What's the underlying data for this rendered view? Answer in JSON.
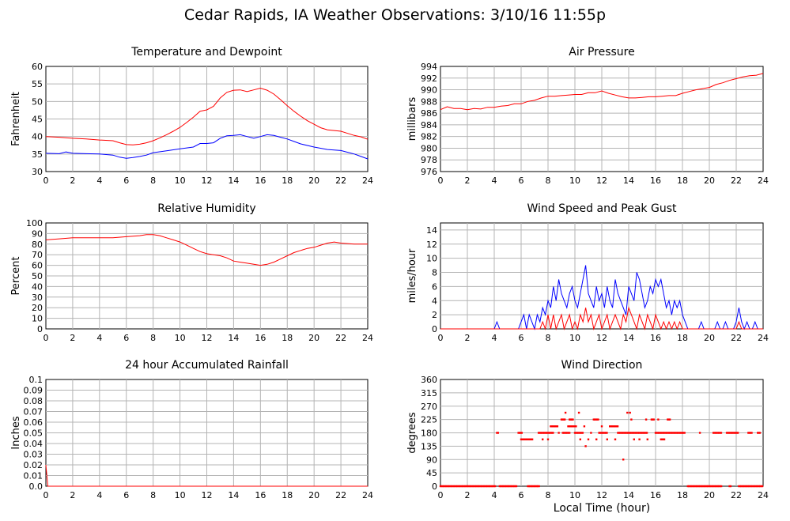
{
  "page": {
    "title": "Cedar Rapids, IA Weather Observations: 3/10/16 11:55p",
    "xlabel": "Local Time (hour)"
  },
  "chart_data": [
    {
      "id": "temp",
      "type": "line",
      "title": "Temperature and Dewpoint",
      "ylabel": "Fahrenheit",
      "xlim": [
        0,
        24
      ],
      "ylim": [
        30,
        60
      ],
      "xticks": [
        0,
        2,
        4,
        6,
        8,
        10,
        12,
        14,
        16,
        18,
        20,
        22,
        24
      ],
      "yticks": [
        30,
        35,
        40,
        45,
        50,
        55,
        60
      ],
      "grid": true,
      "series": [
        {
          "color": "#ff0000",
          "x": [
            0,
            1,
            2,
            3,
            4,
            5,
            5.5,
            6,
            6.5,
            7,
            7.5,
            8,
            8.5,
            9,
            9.5,
            10,
            10.5,
            11,
            11.5,
            12,
            12.5,
            13,
            13.5,
            14,
            14.5,
            15,
            15.5,
            16,
            16.5,
            17,
            17.5,
            18,
            18.5,
            19,
            19.5,
            20,
            20.5,
            21,
            21.5,
            22,
            22.5,
            23,
            23.5,
            24
          ],
          "y": [
            40,
            39.8,
            39.5,
            39.3,
            39,
            38.8,
            38.2,
            37.7,
            37.6,
            37.8,
            38.2,
            38.8,
            39.6,
            40.5,
            41.5,
            42.6,
            44,
            45.5,
            47.2,
            47.6,
            48.6,
            51,
            52.6,
            53.2,
            53.3,
            52.8,
            53.3,
            53.8,
            53.2,
            52.1,
            50.5,
            48.8,
            47.2,
            45.8,
            44.5,
            43.5,
            42.5,
            41.9,
            41.7,
            41.5,
            40.9,
            40.3,
            39.9,
            39.2
          ]
        },
        {
          "color": "#0000ff",
          "x": [
            0,
            1,
            1.5,
            2,
            3,
            4,
            5,
            5.5,
            6,
            6.5,
            7,
            7.5,
            8,
            9,
            10,
            11,
            11.5,
            12,
            12.5,
            13,
            13.5,
            14,
            14.5,
            15,
            15.5,
            16,
            16.5,
            17,
            17.5,
            18,
            18.5,
            19,
            20,
            21,
            22,
            22.5,
            23,
            23.5,
            24
          ],
          "y": [
            35.2,
            35.1,
            35.6,
            35.2,
            35.1,
            35,
            34.7,
            34.1,
            33.8,
            34,
            34.3,
            34.7,
            35.4,
            35.9,
            36.5,
            37,
            38,
            38,
            38.2,
            39.5,
            40.2,
            40.3,
            40.5,
            40,
            39.5,
            40,
            40.5,
            40.3,
            39.8,
            39.3,
            38.6,
            37.9,
            37,
            36.3,
            36,
            35.5,
            35,
            34.3,
            33.6
          ]
        }
      ]
    },
    {
      "id": "pressure",
      "type": "line",
      "title": "Air Pressure",
      "ylabel": "millibars",
      "xlim": [
        0,
        24
      ],
      "ylim": [
        976,
        994
      ],
      "xticks": [
        0,
        2,
        4,
        6,
        8,
        10,
        12,
        14,
        16,
        18,
        20,
        22,
        24
      ],
      "yticks": [
        976,
        978,
        980,
        982,
        984,
        986,
        988,
        990,
        992,
        994
      ],
      "grid": true,
      "series": [
        {
          "color": "#ff0000",
          "x": [
            0,
            0.5,
            1,
            1.5,
            2,
            2.5,
            3,
            3.5,
            4,
            4.5,
            5,
            5.5,
            6,
            6.5,
            7,
            7.5,
            8,
            8.5,
            9,
            9.5,
            10,
            10.5,
            11,
            11.5,
            12,
            12.5,
            13,
            13.5,
            14,
            14.5,
            15,
            15.5,
            16,
            16.5,
            17,
            17.5,
            18,
            18.5,
            19,
            19.5,
            20,
            20.5,
            21,
            21.5,
            22,
            22.5,
            23,
            23.5,
            24
          ],
          "y": [
            986.6,
            987.1,
            986.8,
            986.8,
            986.6,
            986.8,
            986.7,
            987,
            987,
            987.2,
            987.3,
            987.6,
            987.6,
            988,
            988.2,
            988.6,
            988.9,
            988.9,
            989,
            989.1,
            989.2,
            989.2,
            989.5,
            989.5,
            989.8,
            989.4,
            989.1,
            988.8,
            988.6,
            988.6,
            988.7,
            988.8,
            988.8,
            988.9,
            989,
            989,
            989.4,
            989.7,
            990,
            990.2,
            990.4,
            990.9,
            991.2,
            991.6,
            991.9,
            992.2,
            992.4,
            992.5,
            992.8
          ]
        }
      ]
    },
    {
      "id": "humidity",
      "type": "line",
      "title": "Relative Humidity",
      "ylabel": "Percent",
      "xlim": [
        0,
        24
      ],
      "ylim": [
        0,
        100
      ],
      "xticks": [
        0,
        2,
        4,
        6,
        8,
        10,
        12,
        14,
        16,
        18,
        20,
        22,
        24
      ],
      "yticks": [
        0,
        10,
        20,
        30,
        40,
        50,
        60,
        70,
        80,
        90,
        100
      ],
      "grid": true,
      "series": [
        {
          "color": "#ff0000",
          "x": [
            0,
            1,
            2,
            3,
            4,
            5,
            6,
            7,
            7.5,
            8,
            8.5,
            9,
            9.5,
            10,
            10.5,
            11,
            11.5,
            12,
            12.5,
            13,
            13.5,
            14,
            14.5,
            15,
            15.5,
            16,
            16.5,
            17,
            17.5,
            18,
            18.5,
            19,
            19.5,
            20,
            20.5,
            21,
            21.5,
            22,
            23,
            24
          ],
          "y": [
            84,
            85,
            86,
            86,
            86,
            86,
            87,
            88,
            89,
            89,
            88,
            86,
            84,
            82,
            79,
            76,
            73,
            71,
            70,
            69,
            67,
            64,
            63,
            62,
            61,
            60,
            61,
            63,
            66,
            69,
            72,
            74,
            76,
            77,
            79,
            81,
            82,
            81,
            80,
            80
          ]
        }
      ]
    },
    {
      "id": "wind",
      "type": "line",
      "title": "Wind Speed and Peak Gust",
      "ylabel": "miles/hour",
      "xlim": [
        0,
        24
      ],
      "ylim": [
        0,
        15
      ],
      "xticks": [
        0,
        2,
        4,
        6,
        8,
        10,
        12,
        14,
        16,
        18,
        20,
        22,
        24
      ],
      "yticks": [
        0,
        2,
        4,
        6,
        8,
        10,
        12,
        14
      ],
      "grid": true,
      "series": [
        {
          "color": "#0000ff",
          "x": [
            0,
            4,
            4.2,
            4.4,
            5.8,
            6,
            6.2,
            6.4,
            6.6,
            6.8,
            7,
            7.2,
            7.4,
            7.6,
            7.8,
            8,
            8.2,
            8.4,
            8.6,
            8.8,
            9,
            9.2,
            9.4,
            9.6,
            9.8,
            10,
            10.2,
            10.4,
            10.6,
            10.8,
            11,
            11.2,
            11.4,
            11.6,
            11.8,
            12,
            12.2,
            12.4,
            12.6,
            12.8,
            13,
            13.2,
            13.4,
            13.6,
            13.8,
            14,
            14.2,
            14.4,
            14.6,
            14.8,
            15,
            15.2,
            15.4,
            15.6,
            15.8,
            16,
            16.2,
            16.4,
            16.6,
            16.8,
            17,
            17.2,
            17.4,
            17.6,
            17.8,
            18,
            18.2,
            18.4,
            18.6,
            18.8,
            19,
            19.2,
            19.4,
            19.6,
            19.8,
            20,
            20.2,
            20.4,
            20.6,
            20.8,
            21,
            21.2,
            21.4,
            21.6,
            21.8,
            22,
            22.2,
            22.4,
            22.6,
            22.8,
            23,
            23.2,
            23.4,
            23.6,
            24
          ],
          "y": [
            0,
            0,
            1,
            0,
            0,
            1,
            2,
            0,
            2,
            1,
            0,
            2,
            1,
            3,
            2,
            4,
            3,
            6,
            4,
            7,
            5,
            4,
            3,
            5,
            6,
            4,
            3,
            5,
            7,
            9,
            5,
            4,
            3,
            6,
            4,
            5,
            3,
            6,
            4,
            3,
            7,
            5,
            4,
            3,
            2,
            6,
            5,
            4,
            8,
            7,
            5,
            3,
            4,
            6,
            5,
            7,
            6,
            7,
            5,
            3,
            4,
            2,
            4,
            3,
            4,
            2,
            1,
            0,
            0,
            0,
            0,
            0,
            1,
            0,
            0,
            0,
            0,
            0,
            1,
            0,
            0,
            1,
            0,
            0,
            0,
            1,
            3,
            1,
            0,
            1,
            0,
            0,
            1,
            0,
            0
          ]
        },
        {
          "color": "#ff0000",
          "x": [
            0,
            7.4,
            7.6,
            7.8,
            8,
            8.2,
            8.4,
            8.6,
            8.8,
            9,
            9.2,
            9.4,
            9.6,
            9.8,
            10,
            10.2,
            10.4,
            10.6,
            10.8,
            11,
            11.2,
            11.4,
            11.6,
            11.8,
            12,
            12.2,
            12.4,
            12.6,
            12.8,
            13,
            13.2,
            13.4,
            13.6,
            13.8,
            14,
            14.2,
            14.4,
            14.6,
            14.8,
            15,
            15.2,
            15.4,
            15.6,
            15.8,
            16,
            16.2,
            16.4,
            16.6,
            16.8,
            17,
            17.2,
            17.4,
            17.6,
            17.8,
            18,
            22,
            22.2,
            22.4,
            24
          ],
          "y": [
            0,
            0,
            1,
            0,
            2,
            0,
            2,
            0,
            1,
            2,
            0,
            1,
            2,
            0,
            1,
            0,
            2,
            1,
            3,
            1,
            2,
            0,
            1,
            2,
            0,
            1,
            2,
            0,
            1,
            2,
            1,
            0,
            2,
            1,
            3,
            2,
            1,
            0,
            2,
            1,
            0,
            2,
            1,
            0,
            2,
            1,
            0,
            1,
            0,
            1,
            0,
            1,
            0,
            1,
            0,
            0,
            1,
            0,
            0
          ]
        }
      ]
    },
    {
      "id": "rain",
      "type": "line",
      "title": "24 hour Accumulated Rainfall",
      "ylabel": "Inches",
      "xlim": [
        0,
        24
      ],
      "ylim": [
        0,
        0.1
      ],
      "xticks": [
        0,
        2,
        4,
        6,
        8,
        10,
        12,
        14,
        16,
        18,
        20,
        22,
        24
      ],
      "yticks": [
        0,
        0.01,
        0.02,
        0.03,
        0.04,
        0.05,
        0.06,
        0.07,
        0.08,
        0.09,
        0.1
      ],
      "ytick_labels": [
        "0.0",
        "0.01",
        "0.02",
        "0.03",
        "0.04",
        "0.05",
        "0.06",
        "0.07",
        "0.08",
        "0.09",
        "0.1"
      ],
      "grid": true,
      "series": [
        {
          "color": "#ff0000",
          "x": [
            0,
            0.15,
            24
          ],
          "y": [
            0.02,
            0,
            0
          ]
        }
      ]
    },
    {
      "id": "direction",
      "type": "scatter",
      "title": "Wind Direction",
      "ylabel": "degrees",
      "xlim": [
        0,
        24
      ],
      "ylim": [
        0,
        360
      ],
      "xticks": [
        0,
        2,
        4,
        6,
        8,
        10,
        12,
        14,
        16,
        18,
        20,
        22,
        24
      ],
      "yticks": [
        0,
        45,
        90,
        135,
        180,
        225,
        270,
        315,
        360
      ],
      "grid": true,
      "series": [
        {
          "color": "#ff0000",
          "runs": [
            [
              0,
              4.1,
              0
            ],
            [
              4.4,
              5.7,
              0
            ],
            [
              6.5,
              7.4,
              0
            ],
            [
              18.4,
              20.9,
              0
            ],
            [
              21.5,
              21.6,
              0
            ],
            [
              22.2,
              24,
              0
            ],
            [
              4.2,
              4.3,
              180
            ],
            [
              5.8,
              6.1,
              180
            ],
            [
              7.3,
              8.4,
              180
            ],
            [
              9.1,
              9.6,
              180
            ],
            [
              10.0,
              10.6,
              180
            ],
            [
              11.8,
              12.4,
              180
            ],
            [
              13.2,
              15.4,
              180
            ],
            [
              16.0,
              18.2,
              180
            ],
            [
              20.3,
              20.9,
              180
            ],
            [
              21.3,
              22.2,
              180
            ],
            [
              22.9,
              23.2,
              180
            ],
            [
              23.6,
              23.8,
              180
            ],
            [
              6.0,
              6.9,
              158
            ],
            [
              8.2,
              8.7,
              202
            ],
            [
              9.5,
              10.1,
              202
            ],
            [
              12.6,
              13.2,
              202
            ],
            [
              9.0,
              9.3,
              225
            ],
            [
              9.6,
              9.9,
              225
            ],
            [
              11.4,
              11.8,
              225
            ],
            [
              15.7,
              15.9,
              225
            ],
            [
              16.9,
              17.1,
              225
            ],
            [
              16.4,
              16.7,
              158
            ]
          ],
          "points": [
            [
              7.6,
              158
            ],
            [
              8.0,
              158
            ],
            [
              9.3,
              248
            ],
            [
              10.3,
              248
            ],
            [
              13.9,
              248
            ],
            [
              14.1,
              248
            ],
            [
              10.8,
              135
            ],
            [
              13.6,
              90
            ],
            [
              10.4,
              158
            ],
            [
              11.0,
              158
            ],
            [
              11.6,
              158
            ],
            [
              12.4,
              158
            ],
            [
              13.0,
              158
            ],
            [
              14.4,
              158
            ],
            [
              14.8,
              158
            ],
            [
              15.4,
              158
            ],
            [
              10.7,
              202
            ],
            [
              12.0,
              202
            ],
            [
              14.2,
              225
            ],
            [
              15.3,
              225
            ],
            [
              16.2,
              225
            ],
            [
              8.8,
              180
            ],
            [
              11.2,
              180
            ],
            [
              19.3,
              180
            ]
          ]
        }
      ]
    }
  ]
}
